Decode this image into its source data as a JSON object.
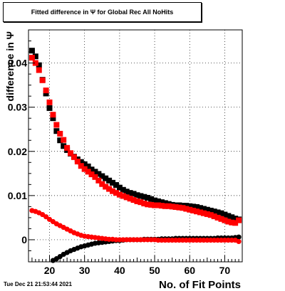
{
  "title": "Fitted difference in  Ψ  for Global Rec All NoHits",
  "datestamp": "Tue Dec 21 21:53:44 2021",
  "chart_data": {
    "type": "scatter",
    "title": "Fitted difference in  Ψ  for Global Rec All NoHits",
    "xlabel": "No. of Fit Points",
    "ylabel": "difference in  Ψ",
    "xlim": [
      14,
      75
    ],
    "ylim": [
      -0.005,
      0.0475
    ],
    "x_ticks": [
      20,
      30,
      40,
      50,
      60,
      70
    ],
    "x_tick_labels": [
      "20",
      "30",
      "40",
      "50",
      "60",
      "70"
    ],
    "y_ticks": [
      0,
      0.01,
      0.02,
      0.03,
      0.04
    ],
    "y_tick_labels": [
      "0",
      "0.01",
      "0.02",
      "0.03",
      "0.04"
    ],
    "grid": true,
    "series": [
      {
        "color": "#000000",
        "marker": "square",
        "x": [
          15,
          16,
          17,
          18,
          19,
          20,
          21,
          22,
          23,
          24,
          25,
          26,
          27,
          28,
          29,
          30,
          31,
          32,
          33,
          34,
          35,
          36,
          37,
          38,
          39,
          40,
          41,
          42,
          43,
          44,
          45,
          46,
          47,
          48,
          49,
          50,
          51,
          52,
          53,
          54,
          55,
          56,
          57,
          58,
          59,
          60,
          61,
          62,
          63,
          64,
          65,
          66,
          67,
          68,
          69,
          70,
          71,
          72,
          73,
          74
        ],
        "y": [
          0.0428,
          0.0415,
          0.0395,
          0.0362,
          0.0331,
          0.0298,
          0.0275,
          0.0246,
          0.0225,
          0.0212,
          0.0203,
          0.0195,
          0.0188,
          0.0182,
          0.0176,
          0.0171,
          0.0166,
          0.0159,
          0.0154,
          0.0149,
          0.0144,
          0.0139,
          0.0134,
          0.0129,
          0.0124,
          0.0118,
          0.0113,
          0.0109,
          0.0106,
          0.0104,
          0.0101,
          0.0099,
          0.0097,
          0.0095,
          0.0092,
          0.0089,
          0.0087,
          0.0085,
          0.0083,
          0.0081,
          0.0079,
          0.0078,
          0.0078,
          0.0077,
          0.0077,
          0.0076,
          0.0075,
          0.0074,
          0.0072,
          0.007,
          0.0068,
          0.0066,
          0.0064,
          0.0062,
          0.006,
          0.0057,
          0.0054,
          0.0051,
          0.0048,
          0.0046
        ]
      },
      {
        "color": "#ff0000",
        "marker": "square",
        "x": [
          15,
          16,
          17,
          18,
          19,
          20,
          21,
          22,
          23,
          24,
          25,
          26,
          27,
          28,
          29,
          30,
          31,
          32,
          33,
          34,
          35,
          36,
          37,
          38,
          39,
          40,
          41,
          42,
          43,
          44,
          45,
          46,
          47,
          48,
          49,
          50,
          51,
          52,
          53,
          54,
          55,
          56,
          57,
          58,
          59,
          60,
          61,
          62,
          63,
          64,
          65,
          66,
          67,
          68,
          69,
          70,
          71,
          72,
          73,
          74
        ],
        "y": [
          0.0412,
          0.04,
          0.0384,
          0.0361,
          0.0338,
          0.0311,
          0.0283,
          0.026,
          0.024,
          0.0226,
          0.0208,
          0.0196,
          0.0187,
          0.0177,
          0.0167,
          0.016,
          0.0154,
          0.0148,
          0.0142,
          0.0134,
          0.0126,
          0.012,
          0.0115,
          0.011,
          0.0106,
          0.0102,
          0.0099,
          0.0096,
          0.0093,
          0.009,
          0.0087,
          0.0085,
          0.0082,
          0.008,
          0.0079,
          0.0078,
          0.0078,
          0.0077,
          0.0076,
          0.0076,
          0.0075,
          0.0074,
          0.0073,
          0.0072,
          0.007,
          0.0068,
          0.0066,
          0.0064,
          0.0062,
          0.006,
          0.0058,
          0.0056,
          0.0053,
          0.005,
          0.0047,
          0.0044,
          0.0041,
          0.0039,
          0.0038,
          0.0044
        ]
      },
      {
        "color": "#000000",
        "marker": "circle",
        "x": [
          21,
          22,
          23,
          24,
          25,
          26,
          27,
          28,
          29,
          30,
          31,
          32,
          33,
          34,
          35,
          36,
          37,
          38,
          39,
          40,
          41,
          42,
          43,
          44,
          45,
          46,
          47,
          48,
          49,
          50,
          51,
          52,
          53,
          54,
          55,
          56,
          57,
          58,
          59,
          60,
          61,
          62,
          63,
          64,
          65,
          66,
          67,
          68,
          69,
          70,
          71,
          72,
          73,
          74
        ],
        "y": [
          -0.0047,
          -0.0043,
          -0.0038,
          -0.0033,
          -0.0029,
          -0.0025,
          -0.0022,
          -0.0019,
          -0.0016,
          -0.0014,
          -0.0012,
          -0.001,
          -0.0008,
          -0.0007,
          -0.0006,
          -0.0005,
          -0.0004,
          -0.0003,
          -0.0002,
          -0.0002,
          -0.0001,
          0.0,
          0.0,
          0.0,
          0.0,
          0.0,
          0.0001,
          0.0001,
          0.0001,
          0.0001,
          0.0001,
          0.0002,
          0.0002,
          0.0002,
          0.0002,
          0.0003,
          0.0003,
          0.0003,
          0.0003,
          0.0003,
          0.0003,
          0.0003,
          0.0003,
          0.0003,
          0.0003,
          0.0003,
          0.0003,
          0.0004,
          0.0004,
          0.0004,
          0.0004,
          0.0004,
          0.0005,
          0.0006
        ]
      },
      {
        "color": "#ff0000",
        "marker": "circle",
        "x": [
          15,
          16,
          17,
          18,
          19,
          20,
          21,
          22,
          23,
          24,
          25,
          26,
          27,
          28,
          29,
          30,
          31,
          32,
          33,
          34,
          35,
          36,
          37,
          38,
          39,
          40,
          41,
          42,
          43,
          44,
          45,
          46,
          47,
          48,
          49,
          50,
          51,
          52,
          53,
          54,
          55,
          56,
          57,
          58,
          59,
          60,
          61,
          62,
          63,
          64,
          65,
          66,
          67,
          68,
          69,
          70,
          71,
          72,
          73,
          74
        ],
        "y": [
          0.0066,
          0.0064,
          0.0061,
          0.0057,
          0.0052,
          0.0046,
          0.0041,
          0.0036,
          0.0032,
          0.0028,
          0.0024,
          0.002,
          0.0016,
          0.0013,
          0.001,
          0.0008,
          0.0007,
          0.0006,
          0.0005,
          0.0004,
          0.0003,
          0.0002,
          0.0001,
          0.0001,
          0.0,
          0.0,
          0.0,
          0.0,
          0.0,
          0.0,
          0.0,
          0.0,
          0.0,
          0.0,
          0.0,
          0.0,
          -0.0001,
          -0.0001,
          -0.0001,
          -0.0001,
          -0.0001,
          -0.0001,
          -0.0001,
          -0.0001,
          -0.0001,
          -0.0001,
          -0.0001,
          -0.0001,
          -0.0001,
          -0.0001,
          -0.0001,
          -0.0001,
          -0.0001,
          -0.0001,
          -0.0001,
          -0.0001,
          -0.0001,
          -0.0001,
          -0.0001,
          -0.0004
        ]
      }
    ]
  }
}
